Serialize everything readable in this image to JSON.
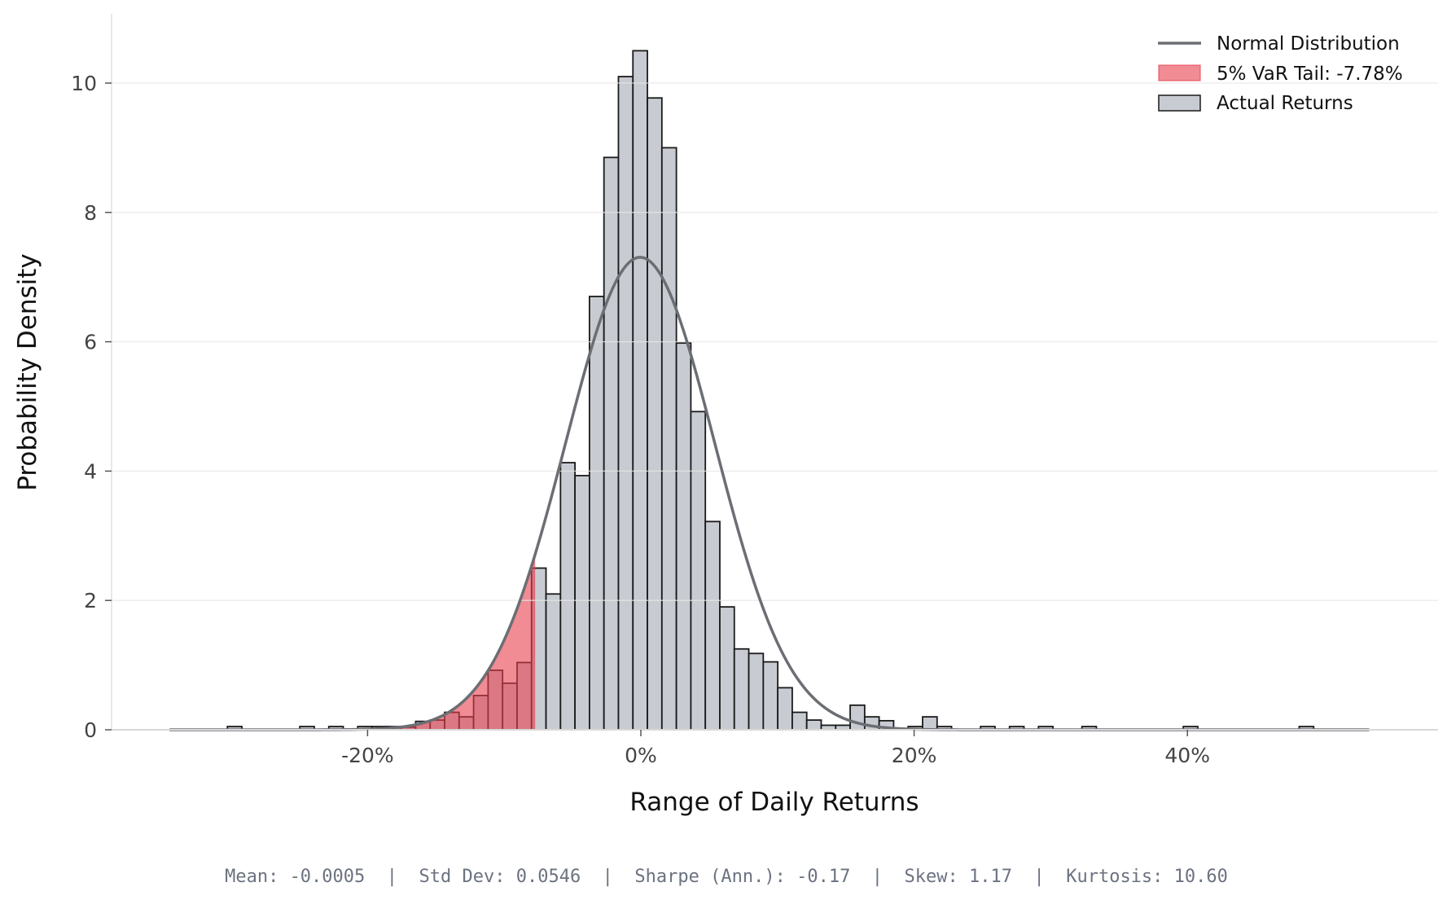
{
  "chart_data": {
    "type": "bar",
    "title": "",
    "xlabel": "Range of Daily Returns",
    "ylabel": "Probability Density",
    "x_unit": "%",
    "xlim": [
      -38,
      57
    ],
    "ylim": [
      0,
      11
    ],
    "x_ticks": [
      -20,
      0,
      20,
      40
    ],
    "x_tick_labels": [
      "-20%",
      "0%",
      "20%",
      "40%"
    ],
    "y_ticks": [
      0,
      2,
      4,
      6,
      8,
      10
    ],
    "y_tick_labels": [
      "0",
      "2",
      "4",
      "6",
      "8",
      "10"
    ],
    "grid": "horizontal",
    "legend_position": "top-right",
    "histogram": {
      "name": "Actual Returns",
      "bin_start": -34.5,
      "bin_width": 1.06,
      "density": [
        0,
        0,
        0,
        0,
        0.05,
        0,
        0,
        0,
        0,
        0.05,
        0,
        0.05,
        0,
        0.05,
        0.05,
        0.05,
        0.04,
        0.13,
        0.15,
        0.27,
        0.2,
        0.53,
        0.92,
        0.72,
        1.04,
        2.5,
        2.1,
        4.13,
        3.93,
        6.7,
        8.85,
        10.1,
        10.5,
        9.77,
        9.0,
        5.98,
        4.92,
        3.22,
        1.9,
        1.25,
        1.18,
        1.05,
        0.65,
        0.27,
        0.15,
        0.07,
        0.07,
        0.38,
        0.2,
        0.14,
        0,
        0.05,
        0.2,
        0.05,
        0,
        0,
        0.05,
        0,
        0.05,
        0,
        0.05,
        0,
        0,
        0.05,
        0,
        0,
        0,
        0,
        0,
        0,
        0.05,
        0,
        0,
        0,
        0,
        0,
        0,
        0,
        0.05,
        0,
        0,
        0,
        0
      ]
    },
    "normal_curve": {
      "name": "Normal Distribution",
      "mean": -0.0005,
      "std": 0.0546
    },
    "var_tail": {
      "name": "5% VaR Tail: -7.78%",
      "cutoff_percent": -7.78
    },
    "colors": {
      "bars": "#c8ccd2",
      "bar_edge": "#1a1a1a",
      "curve": "#6b6e73",
      "tail": "#e8404f",
      "grid": "#e6e6e6"
    }
  },
  "legend": {
    "items": [
      "Normal Distribution",
      "5% VaR Tail: -7.78%",
      "Actual Returns"
    ]
  },
  "footer": {
    "stats": "Mean: -0.0005  |  Std Dev: 0.0546  |  Sharpe (Ann.): -0.17  |  Skew: 1.17  |  Kurtosis: 10.60"
  }
}
